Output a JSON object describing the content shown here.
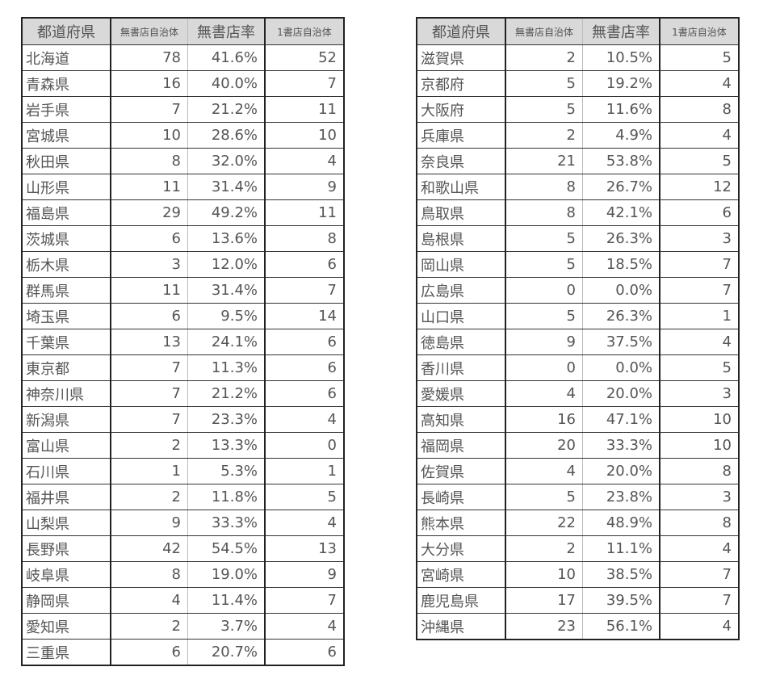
{
  "headers": [
    "都道府県",
    "無書店自治体",
    "無書店率",
    "1書店自治体"
  ],
  "left": [
    [
      "北海道",
      "78",
      "41.6%",
      "52"
    ],
    [
      "青森県",
      "16",
      "40.0%",
      "7"
    ],
    [
      "岩手県",
      "7",
      "21.2%",
      "11"
    ],
    [
      "宮城県",
      "10",
      "28.6%",
      "10"
    ],
    [
      "秋田県",
      "8",
      "32.0%",
      "4"
    ],
    [
      "山形県",
      "11",
      "31.4%",
      "9"
    ],
    [
      "福島県",
      "29",
      "49.2%",
      "11"
    ],
    [
      "茨城県",
      "6",
      "13.6%",
      "8"
    ],
    [
      "栃木県",
      "3",
      "12.0%",
      "6"
    ],
    [
      "群馬県",
      "11",
      "31.4%",
      "7"
    ],
    [
      "埼玉県",
      "6",
      "9.5%",
      "14"
    ],
    [
      "千葉県",
      "13",
      "24.1%",
      "6"
    ],
    [
      "東京都",
      "7",
      "11.3%",
      "6"
    ],
    [
      "神奈川県",
      "7",
      "21.2%",
      "6"
    ],
    [
      "新潟県",
      "7",
      "23.3%",
      "4"
    ],
    [
      "富山県",
      "2",
      "13.3%",
      "0"
    ],
    [
      "石川県",
      "1",
      "5.3%",
      "1"
    ],
    [
      "福井県",
      "2",
      "11.8%",
      "5"
    ],
    [
      "山梨県",
      "9",
      "33.3%",
      "4"
    ],
    [
      "長野県",
      "42",
      "54.5%",
      "13"
    ],
    [
      "岐阜県",
      "8",
      "19.0%",
      "9"
    ],
    [
      "静岡県",
      "4",
      "11.4%",
      "7"
    ],
    [
      "愛知県",
      "2",
      "3.7%",
      "4"
    ],
    [
      "三重県",
      "6",
      "20.7%",
      "6"
    ]
  ],
  "right": [
    [
      "滋賀県",
      "2",
      "10.5%",
      "5"
    ],
    [
      "京都府",
      "5",
      "19.2%",
      "4"
    ],
    [
      "大阪府",
      "5",
      "11.6%",
      "8"
    ],
    [
      "兵庫県",
      "2",
      "4.9%",
      "4"
    ],
    [
      "奈良県",
      "21",
      "53.8%",
      "5"
    ],
    [
      "和歌山県",
      "8",
      "26.7%",
      "12"
    ],
    [
      "鳥取県",
      "8",
      "42.1%",
      "6"
    ],
    [
      "島根県",
      "5",
      "26.3%",
      "3"
    ],
    [
      "岡山県",
      "5",
      "18.5%",
      "7"
    ],
    [
      "広島県",
      "0",
      "0.0%",
      "7"
    ],
    [
      "山口県",
      "5",
      "26.3%",
      "1"
    ],
    [
      "徳島県",
      "9",
      "37.5%",
      "4"
    ],
    [
      "香川県",
      "0",
      "0.0%",
      "5"
    ],
    [
      "愛媛県",
      "4",
      "20.0%",
      "3"
    ],
    [
      "高知県",
      "16",
      "47.1%",
      "10"
    ],
    [
      "福岡県",
      "20",
      "33.3%",
      "10"
    ],
    [
      "佐賀県",
      "4",
      "20.0%",
      "8"
    ],
    [
      "長崎県",
      "5",
      "23.8%",
      "3"
    ],
    [
      "熊本県",
      "22",
      "48.9%",
      "8"
    ],
    [
      "大分県",
      "2",
      "11.1%",
      "4"
    ],
    [
      "宮崎県",
      "10",
      "38.5%",
      "7"
    ],
    [
      "鹿児島県",
      "17",
      "39.5%",
      "7"
    ],
    [
      "沖縄県",
      "23",
      "56.1%",
      "4"
    ]
  ]
}
